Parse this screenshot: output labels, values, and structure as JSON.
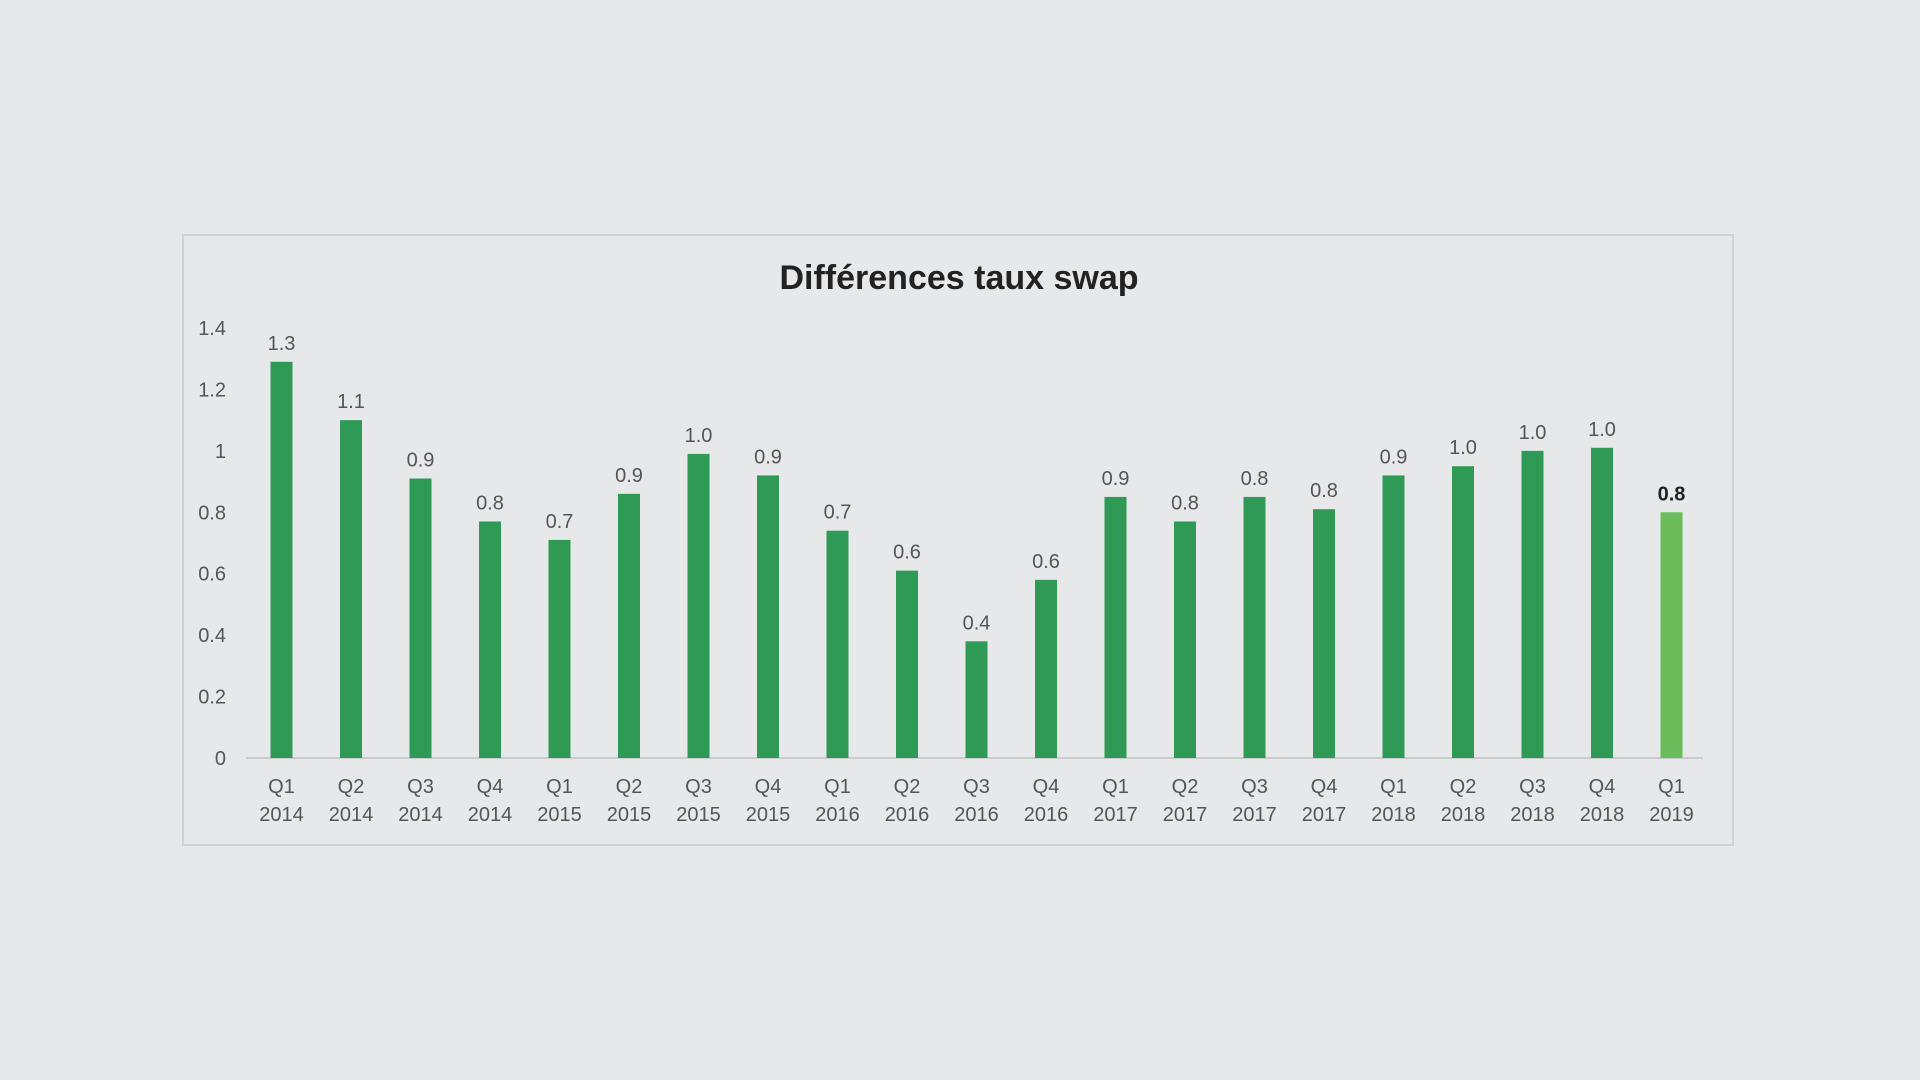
{
  "chart_data": {
    "type": "bar",
    "title": "Différences taux swap",
    "xlabel": "",
    "ylabel": "",
    "ylim": [
      0,
      1.4
    ],
    "yticks": [
      "0",
      "0.2",
      "0.4",
      "0.6",
      "0.8",
      "1",
      "1.2",
      "1.4"
    ],
    "grid": false,
    "categories": [
      [
        "Q1",
        "2014"
      ],
      [
        "Q2",
        "2014"
      ],
      [
        "Q3",
        "2014"
      ],
      [
        "Q4",
        "2014"
      ],
      [
        "Q1",
        "2015"
      ],
      [
        "Q2",
        "2015"
      ],
      [
        "Q3",
        "2015"
      ],
      [
        "Q4",
        "2015"
      ],
      [
        "Q1",
        "2016"
      ],
      [
        "Q2",
        "2016"
      ],
      [
        "Q3",
        "2016"
      ],
      [
        "Q4",
        "2016"
      ],
      [
        "Q1",
        "2017"
      ],
      [
        "Q2",
        "2017"
      ],
      [
        "Q3",
        "2017"
      ],
      [
        "Q4",
        "2017"
      ],
      [
        "Q1",
        "2018"
      ],
      [
        "Q2",
        "2018"
      ],
      [
        "Q3",
        "2018"
      ],
      [
        "Q4",
        "2018"
      ],
      [
        "Q1",
        "2019"
      ]
    ],
    "values": [
      1.29,
      1.1,
      0.91,
      0.77,
      0.71,
      0.86,
      0.99,
      0.92,
      0.74,
      0.61,
      0.38,
      0.58,
      0.85,
      0.77,
      0.85,
      0.81,
      0.92,
      0.95,
      1.0,
      1.01,
      0.8
    ],
    "data_labels": [
      "1.3",
      "1.1",
      "0.9",
      "0.8",
      "0.7",
      "0.9",
      "1.0",
      "0.9",
      "0.7",
      "0.6",
      "0.4",
      "0.6",
      "0.9",
      "0.8",
      "0.8",
      "0.8",
      "0.9",
      "1.0",
      "1.0",
      "1.0",
      "0.8"
    ],
    "highlight_index": 20,
    "colors": {
      "bar": "#2e9a55",
      "highlight": "#6bbd5b",
      "axis": "#c9cbcd"
    }
  }
}
